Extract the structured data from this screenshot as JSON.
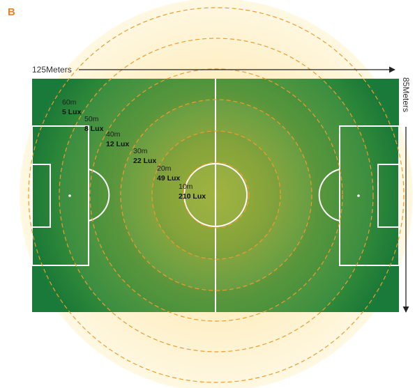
{
  "panel_label": "B",
  "dimensions": {
    "length_label": "125Meters",
    "width_label": "85Meters"
  },
  "rings": [
    {
      "distance": "10m",
      "illuminance": "210 Lux"
    },
    {
      "distance": "20m",
      "illuminance": "49 Lux"
    },
    {
      "distance": "30m",
      "illuminance": "22 Lux"
    },
    {
      "distance": "40m",
      "illuminance": "12 Lux"
    },
    {
      "distance": "50m",
      "illuminance": "8 Lux"
    },
    {
      "distance": "60m",
      "illuminance": "5 Lux"
    }
  ],
  "colors": {
    "panel_label": "#e8822a",
    "ring_dash": "#f39a2a",
    "glow_outer": "#fdf2c0",
    "pitch_dark": "#1e7e3a",
    "pitch_center": "#a8b730",
    "pitch_lines": "#ffffff",
    "arrow": "#222222"
  }
}
